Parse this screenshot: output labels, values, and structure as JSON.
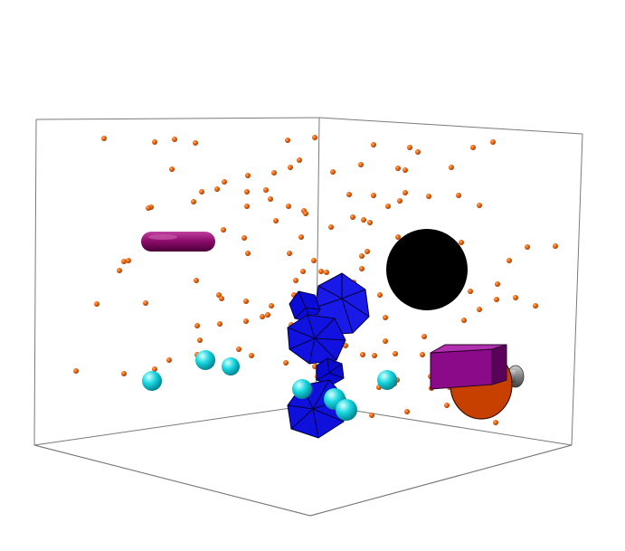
{
  "scene": {
    "description_visible_text": "",
    "colors": {
      "background": "#ffffff",
      "box_edge": "#707070",
      "particle": "#e8620a",
      "icosahedron": "#1010e0",
      "icosahedron_edge": "#000040",
      "sphere_cyan": "#18d8e0",
      "black_disk": "#000000",
      "torus": "#8a0a6a",
      "prism": "#8a0a8a",
      "cylinder_disk": "#c84000",
      "cone_grey": "#808080"
    },
    "objects": [
      {
        "kind": "wireframe-box",
        "icon": "cube-outline"
      },
      {
        "kind": "torus",
        "icon": "capsule"
      },
      {
        "kind": "disk",
        "icon": "black-circle"
      },
      {
        "kind": "icosahedron-cluster",
        "icon": "polyhedron"
      },
      {
        "kind": "sphere-cluster",
        "icon": "cyan-spheres"
      },
      {
        "kind": "prism-with-disk",
        "icon": "prism"
      },
      {
        "kind": "particle-cloud",
        "icon": "orange-dots"
      }
    ]
  }
}
